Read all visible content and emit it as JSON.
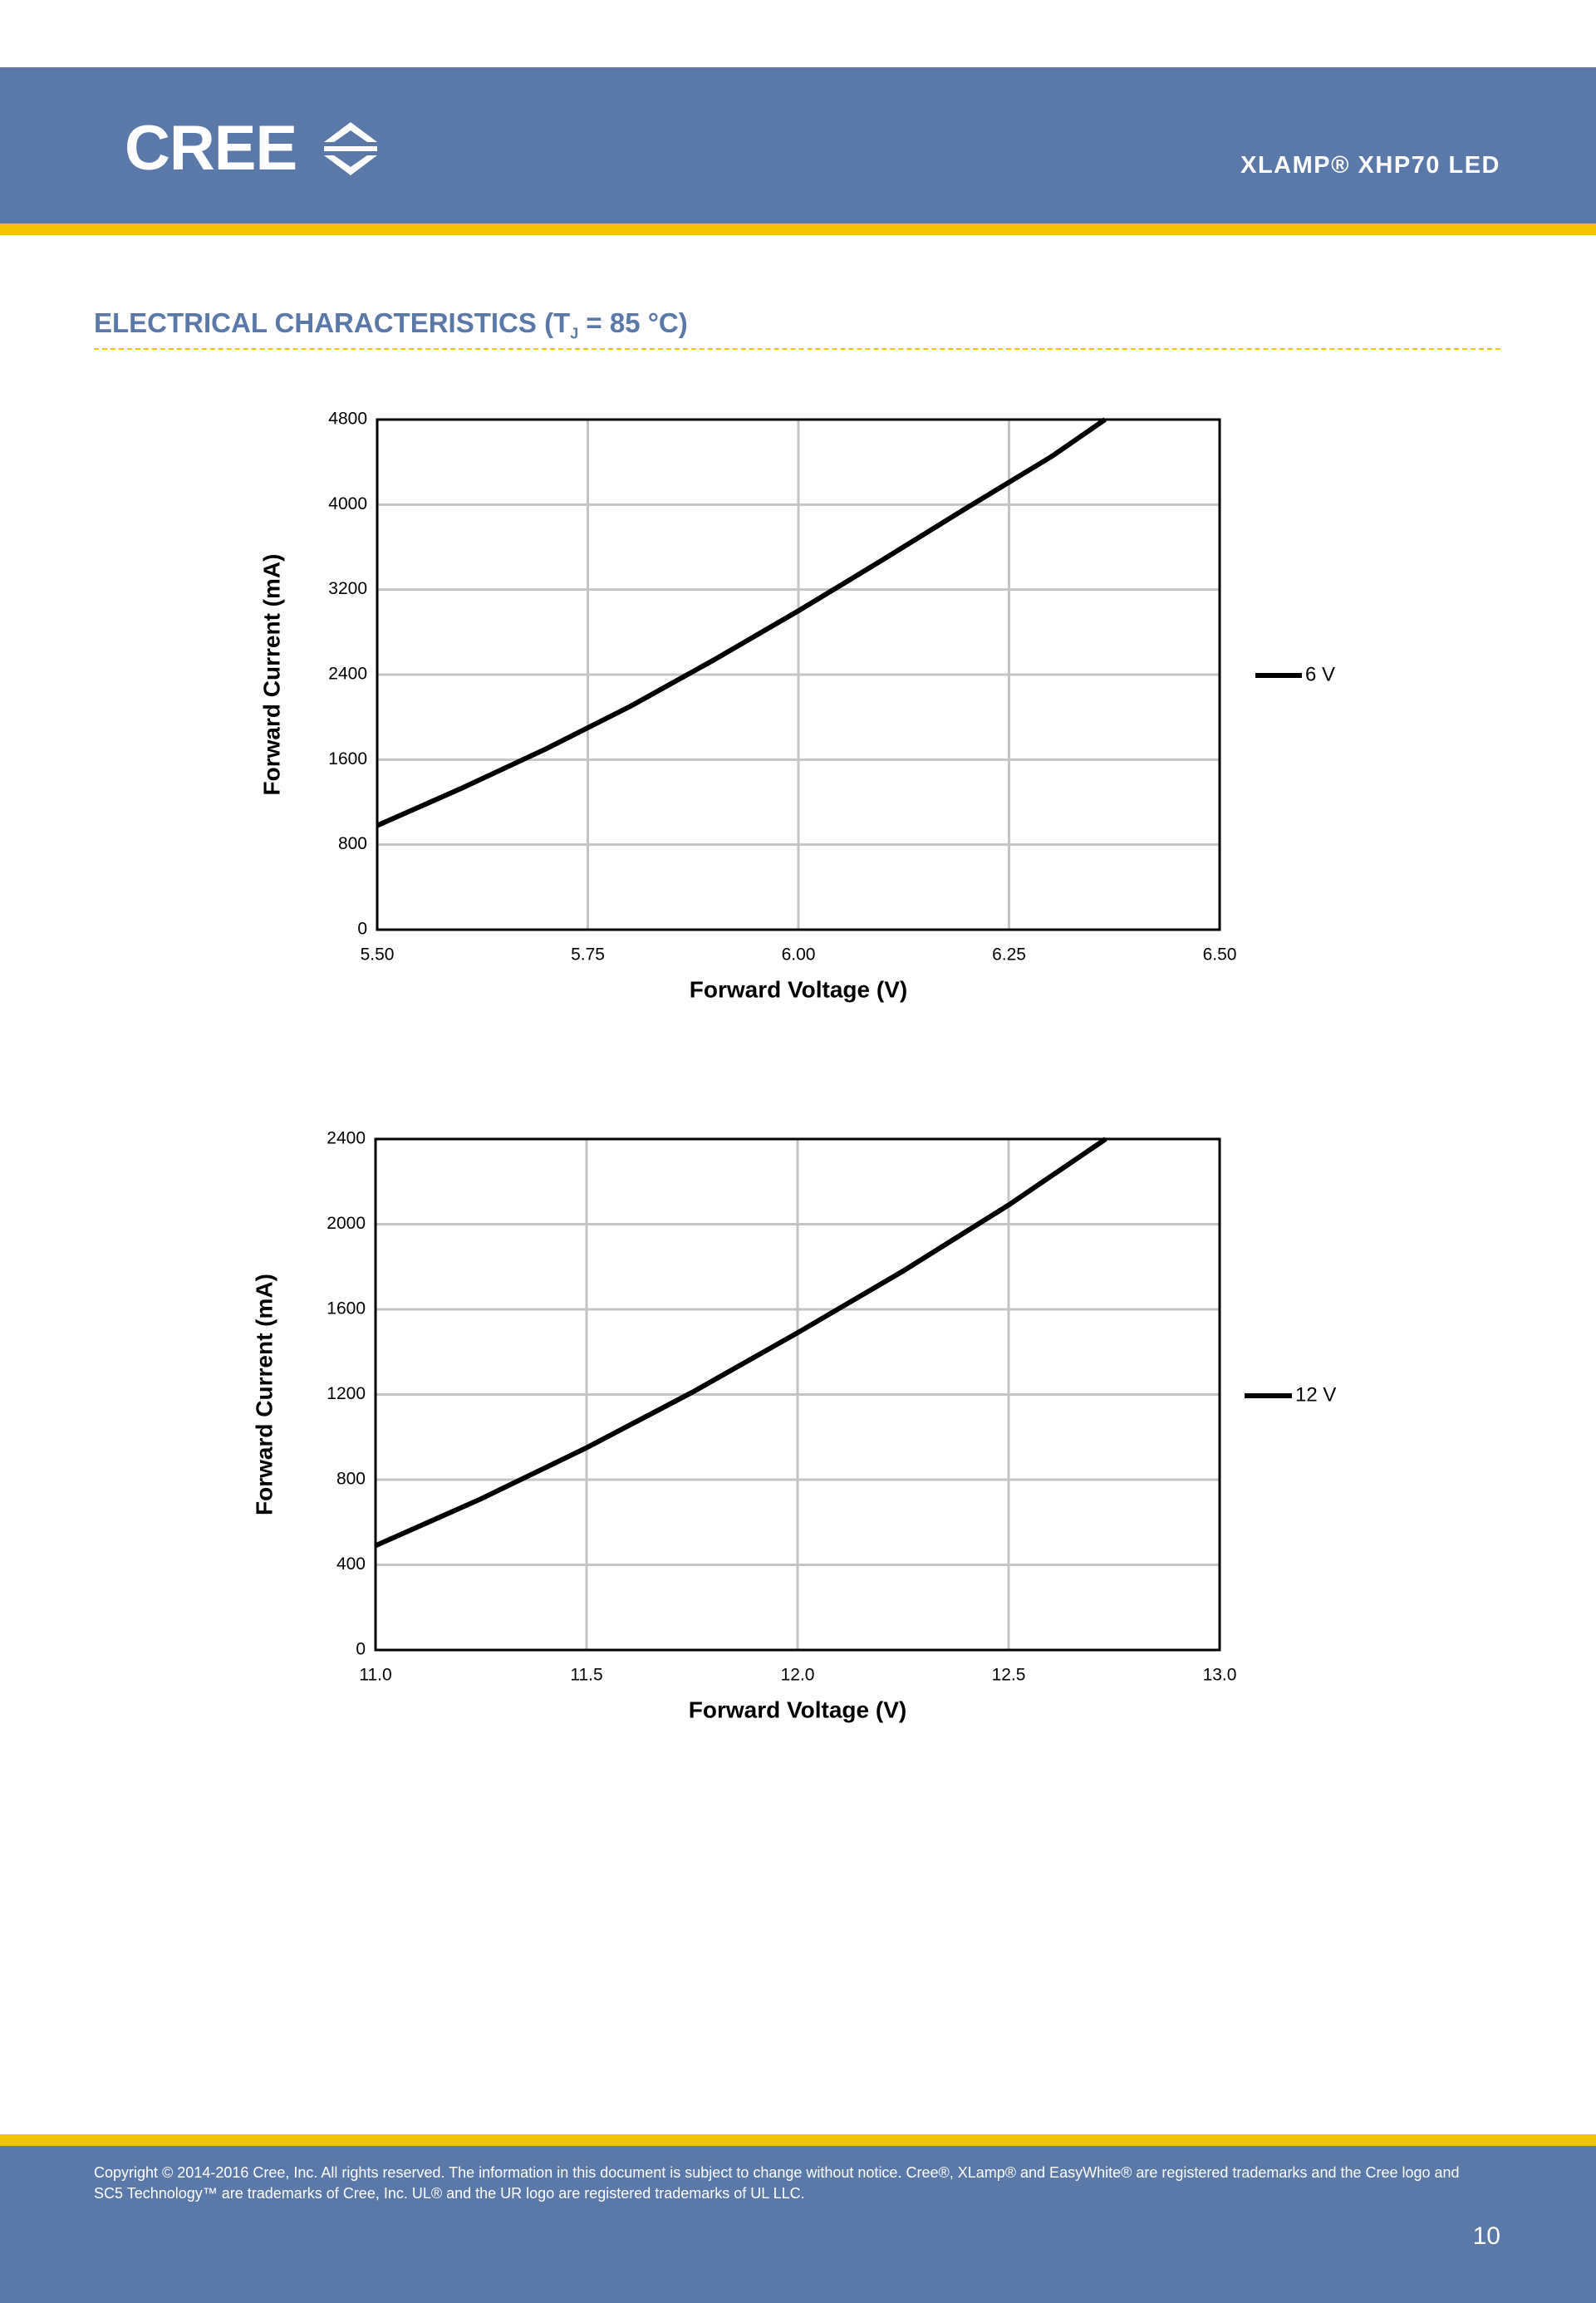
{
  "header": {
    "logo": "CREE",
    "title": "XLAMP® XHP70 LED"
  },
  "section_title": {
    "before": "ELECTRICAL CHARACTERISTICS (T",
    "subscript": "J",
    "after": " = 85 °C)"
  },
  "chart_data": [
    {
      "type": "line",
      "x_label": "Forward Voltage (V)",
      "y_label": "Forward Current (mA)",
      "x": [
        5.5,
        5.6,
        5.7,
        5.8,
        5.9,
        6.0,
        6.1,
        6.2,
        6.3,
        6.364
      ],
      "series": [
        {
          "name": "6 V",
          "color": "#000000",
          "values": [
            980,
            1330,
            1700,
            2100,
            2540,
            3000,
            3480,
            3970,
            4450,
            4800
          ]
        }
      ],
      "xlim": [
        5.5,
        6.5
      ],
      "ylim": [
        0,
        4800
      ],
      "xticks": [
        {
          "value": 5.5,
          "label": "5.50"
        },
        5.75,
        {
          "value": 6,
          "label": "6.00"
        },
        6.25,
        {
          "value": 6.5,
          "label": "6.50"
        }
      ],
      "yticks": [
        0,
        800,
        1600,
        2400,
        3200,
        4000,
        4800
      ],
      "grid": true,
      "legend": "right"
    },
    {
      "type": "line",
      "x_label": "Forward Voltage (V)",
      "y_label": "Forward Current (mA)",
      "x": [
        11.0,
        11.25,
        11.5,
        11.75,
        12.0,
        12.25,
        12.5,
        12.73
      ],
      "series": [
        {
          "name": "12 V",
          "color": "#000000",
          "values": [
            490,
            710,
            950,
            1210,
            1490,
            1780,
            2090,
            2400
          ]
        }
      ],
      "xlim": [
        11,
        13
      ],
      "ylim": [
        0,
        2400
      ],
      "xticks": [
        {
          "value": 11,
          "label": "11.0"
        },
        11.5,
        {
          "value": 12,
          "label": "12.0"
        },
        12.5,
        {
          "value": 13,
          "label": "13.0"
        }
      ],
      "yticks": [
        0,
        400,
        800,
        1200,
        1600,
        2000,
        2400
      ],
      "grid": true,
      "legend": "right"
    }
  ],
  "footer": {
    "lines": [
      "Copyright © 2014-2016 Cree, Inc. All rights reserved. The information in this document is subject to change without notice. Cree®, XLamp® and EasyWhite® are registered trademarks and the Cree logo and",
      "SC5 Technology™ are trademarks of Cree, Inc. UL® and the UR logo are registered trademarks of UL LLC."
    ],
    "page": "10"
  }
}
